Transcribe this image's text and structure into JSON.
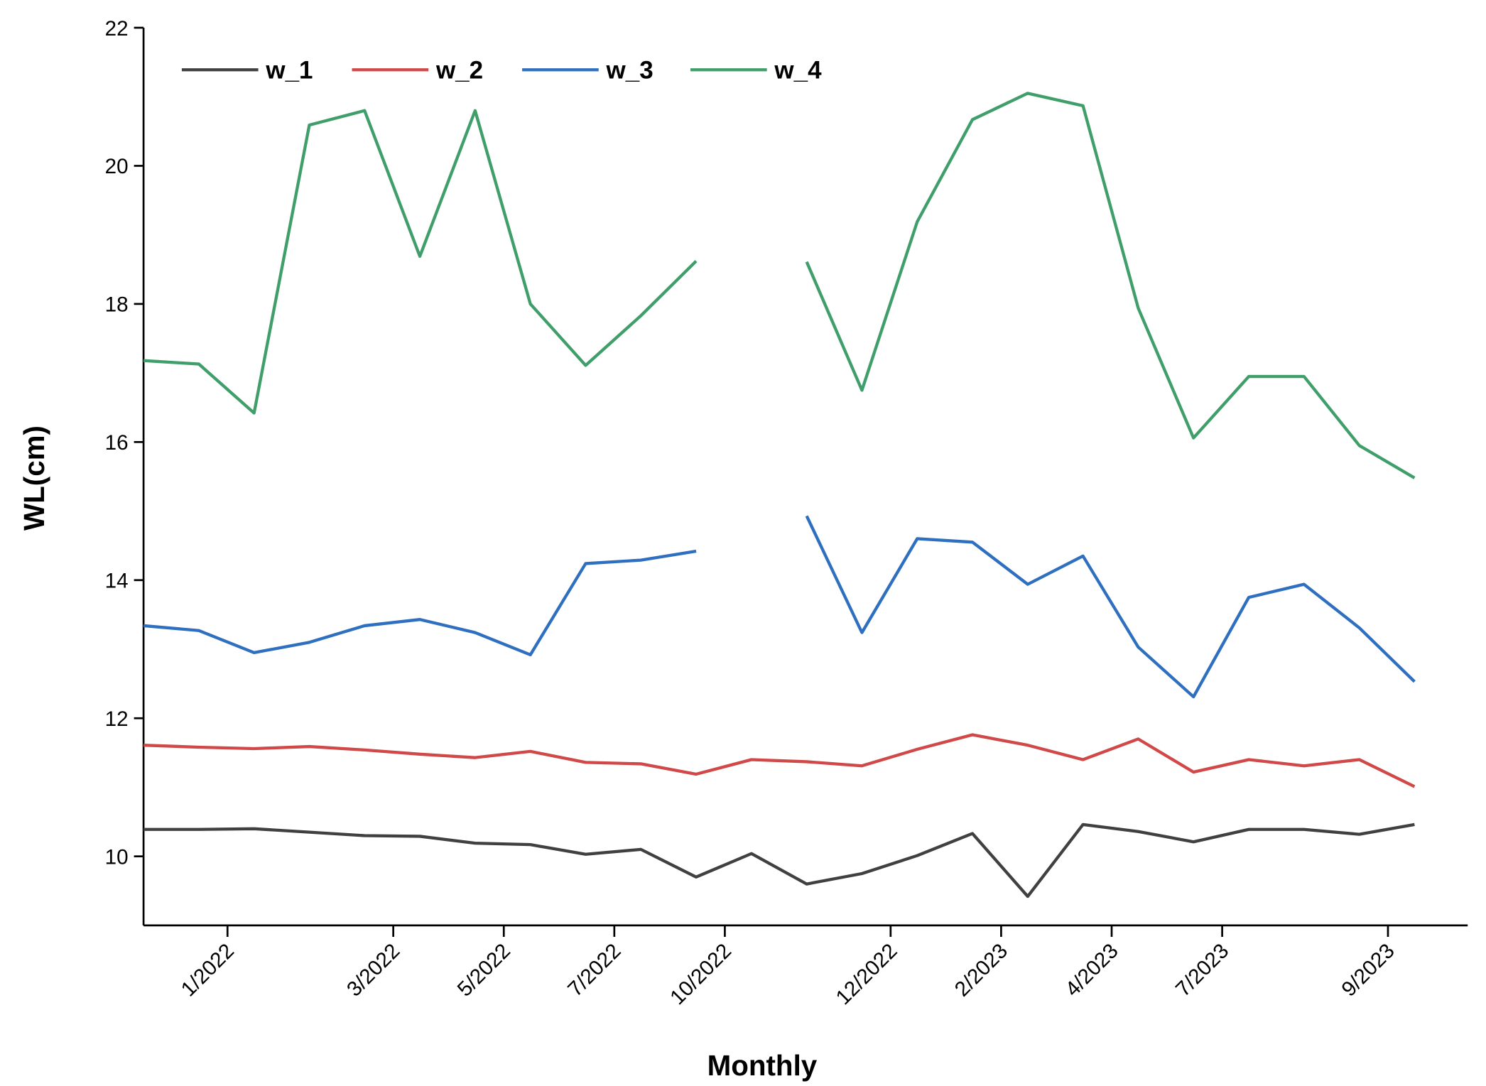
{
  "chart_data": {
    "type": "line",
    "x_label": "Monthly",
    "y_label": "WL(cm)",
    "categories": [
      null,
      "1/2022",
      null,
      null,
      "3/2022",
      null,
      "5/2022",
      null,
      "7/2022",
      null,
      "10/2022",
      null,
      null,
      "12/2022",
      null,
      "2/2023",
      null,
      "4/2023",
      null,
      "7/2023",
      null,
      null,
      "9/2023",
      null
    ],
    "series": [
      {
        "name": "w_1",
        "color": "#404040",
        "values": [
          10.39,
          10.39,
          10.4,
          10.35,
          10.3,
          10.29,
          10.19,
          10.17,
          10.03,
          10.1,
          9.7,
          10.04,
          9.6,
          9.75,
          10.01,
          10.33,
          9.42,
          10.46,
          10.36,
          10.21,
          10.39,
          10.39,
          10.32,
          10.46
        ]
      },
      {
        "name": "w_2",
        "color": "#d04848",
        "values": [
          11.61,
          11.58,
          11.56,
          11.59,
          11.54,
          11.48,
          11.43,
          11.52,
          11.36,
          11.34,
          11.19,
          11.4,
          11.37,
          11.31,
          11.55,
          11.76,
          11.61,
          11.4,
          11.7,
          11.22,
          11.4,
          11.31,
          11.4,
          11.01
        ]
      },
      {
        "name": "w_3",
        "color": "#2e6fc0",
        "values": [
          13.34,
          13.27,
          12.95,
          13.1,
          13.34,
          13.43,
          13.24,
          12.92,
          14.24,
          14.29,
          14.42,
          null,
          14.93,
          13.24,
          14.6,
          14.55,
          13.94,
          14.35,
          13.03,
          12.31,
          13.75,
          13.94,
          13.31,
          12.53
        ]
      },
      {
        "name": "w_4",
        "color": "#3f9e6a",
        "values": [
          17.18,
          17.13,
          16.42,
          20.59,
          20.8,
          18.69,
          20.8,
          18.0,
          17.11,
          17.83,
          18.62,
          null,
          18.61,
          16.75,
          19.19,
          20.67,
          21.05,
          20.87,
          17.94,
          16.06,
          16.95,
          16.95,
          15.95,
          15.48
        ]
      }
    ],
    "ylim": [
      9,
      22
    ],
    "yticks": [
      10,
      12,
      14,
      16,
      18,
      20,
      22
    ],
    "grid": false,
    "legend": "top-left"
  }
}
